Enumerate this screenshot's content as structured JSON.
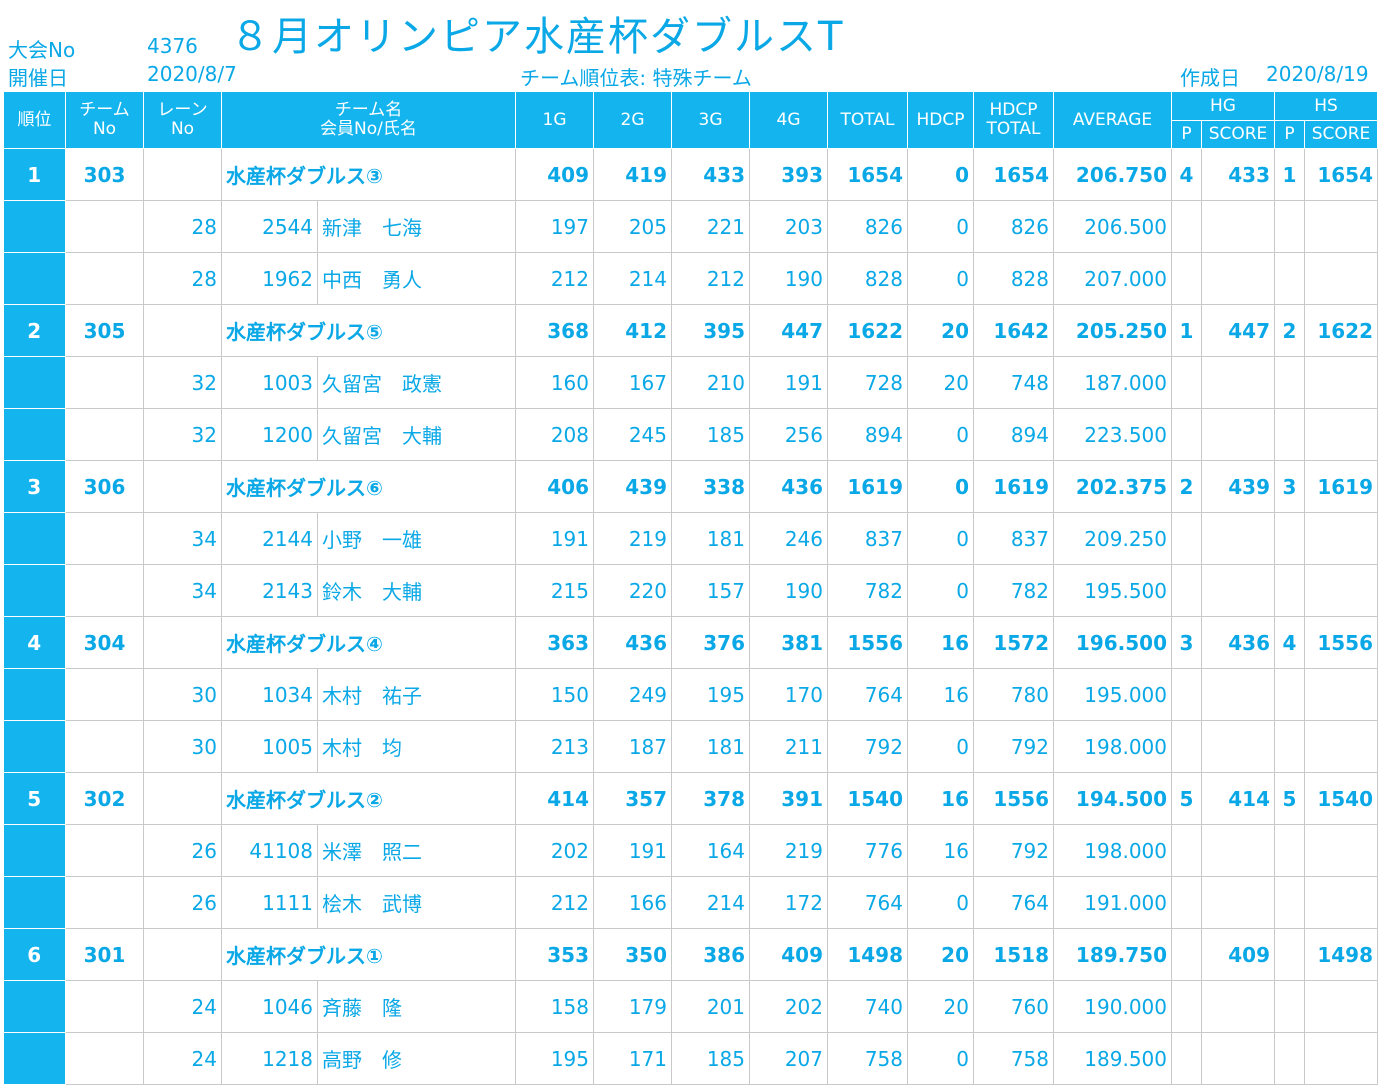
{
  "header": {
    "tournament_no_label": "大会No",
    "tournament_no": "4376",
    "date_label": "開催日",
    "date": "2020/8/7",
    "title": "８月オリンピア水産杯ダブルスT",
    "subtitle": "チーム順位表: 特殊チーム",
    "created_label": "作成日",
    "created_date": "2020/8/19"
  },
  "columns": {
    "rank": "順位",
    "team_no_1": "チーム",
    "team_no_2": "No",
    "lane_1": "レーン",
    "lane_2": "No",
    "team_name_1": "チーム名",
    "team_name_2": "会員No/氏名",
    "g1": "1G",
    "g2": "2G",
    "g3": "3G",
    "g4": "4G",
    "total": "TOTAL",
    "hdcp": "HDCP",
    "hdcp_total_1": "HDCP",
    "hdcp_total_2": "TOTAL",
    "average": "AVERAGE",
    "hg": "HG",
    "hs": "HS",
    "p": "P",
    "score": "SCORE"
  },
  "teams": [
    {
      "rank": "1",
      "team_no": "303",
      "name": "水産杯ダブルス③",
      "g1": "409",
      "g2": "419",
      "g3": "433",
      "g4": "393",
      "total": "1654",
      "hdcp": "0",
      "hdcp_total": "1654",
      "average": "206.750",
      "hg_p": "4",
      "hg_score": "433",
      "hs_p": "1",
      "hs_score": "1654",
      "members": [
        {
          "lane": "28",
          "member_no": "2544",
          "name": "新津　七海",
          "g1": "197",
          "g2": "205",
          "g3": "221",
          "g4": "203",
          "total": "826",
          "hdcp": "0",
          "hdcp_total": "826",
          "average": "206.500"
        },
        {
          "lane": "28",
          "member_no": "1962",
          "name": "中西　勇人",
          "g1": "212",
          "g2": "214",
          "g3": "212",
          "g4": "190",
          "total": "828",
          "hdcp": "0",
          "hdcp_total": "828",
          "average": "207.000"
        }
      ]
    },
    {
      "rank": "2",
      "team_no": "305",
      "name": "水産杯ダブルス⑤",
      "g1": "368",
      "g2": "412",
      "g3": "395",
      "g4": "447",
      "total": "1622",
      "hdcp": "20",
      "hdcp_total": "1642",
      "average": "205.250",
      "hg_p": "1",
      "hg_score": "447",
      "hs_p": "2",
      "hs_score": "1622",
      "members": [
        {
          "lane": "32",
          "member_no": "1003",
          "name": "久留宮　政憲",
          "g1": "160",
          "g2": "167",
          "g3": "210",
          "g4": "191",
          "total": "728",
          "hdcp": "20",
          "hdcp_total": "748",
          "average": "187.000"
        },
        {
          "lane": "32",
          "member_no": "1200",
          "name": "久留宮　大輔",
          "g1": "208",
          "g2": "245",
          "g3": "185",
          "g4": "256",
          "total": "894",
          "hdcp": "0",
          "hdcp_total": "894",
          "average": "223.500"
        }
      ]
    },
    {
      "rank": "3",
      "team_no": "306",
      "name": "水産杯ダブルス⑥",
      "g1": "406",
      "g2": "439",
      "g3": "338",
      "g4": "436",
      "total": "1619",
      "hdcp": "0",
      "hdcp_total": "1619",
      "average": "202.375",
      "hg_p": "2",
      "hg_score": "439",
      "hs_p": "3",
      "hs_score": "1619",
      "members": [
        {
          "lane": "34",
          "member_no": "2144",
          "name": "小野　一雄",
          "g1": "191",
          "g2": "219",
          "g3": "181",
          "g4": "246",
          "total": "837",
          "hdcp": "0",
          "hdcp_total": "837",
          "average": "209.250"
        },
        {
          "lane": "34",
          "member_no": "2143",
          "name": "鈴木　大輔",
          "g1": "215",
          "g2": "220",
          "g3": "157",
          "g4": "190",
          "total": "782",
          "hdcp": "0",
          "hdcp_total": "782",
          "average": "195.500"
        }
      ]
    },
    {
      "rank": "4",
      "team_no": "304",
      "name": "水産杯ダブルス④",
      "g1": "363",
      "g2": "436",
      "g3": "376",
      "g4": "381",
      "total": "1556",
      "hdcp": "16",
      "hdcp_total": "1572",
      "average": "196.500",
      "hg_p": "3",
      "hg_score": "436",
      "hs_p": "4",
      "hs_score": "1556",
      "members": [
        {
          "lane": "30",
          "member_no": "1034",
          "name": "木村　祐子",
          "g1": "150",
          "g2": "249",
          "g3": "195",
          "g4": "170",
          "total": "764",
          "hdcp": "16",
          "hdcp_total": "780",
          "average": "195.000"
        },
        {
          "lane": "30",
          "member_no": "1005",
          "name": "木村　均",
          "g1": "213",
          "g2": "187",
          "g3": "181",
          "g4": "211",
          "total": "792",
          "hdcp": "0",
          "hdcp_total": "792",
          "average": "198.000"
        }
      ]
    },
    {
      "rank": "5",
      "team_no": "302",
      "name": "水産杯ダブルス②",
      "g1": "414",
      "g2": "357",
      "g3": "378",
      "g4": "391",
      "total": "1540",
      "hdcp": "16",
      "hdcp_total": "1556",
      "average": "194.500",
      "hg_p": "5",
      "hg_score": "414",
      "hs_p": "5",
      "hs_score": "1540",
      "members": [
        {
          "lane": "26",
          "member_no": "41108",
          "name": "米澤　照二",
          "g1": "202",
          "g2": "191",
          "g3": "164",
          "g4": "219",
          "total": "776",
          "hdcp": "16",
          "hdcp_total": "792",
          "average": "198.000"
        },
        {
          "lane": "26",
          "member_no": "1111",
          "name": "桧木　武博",
          "g1": "212",
          "g2": "166",
          "g3": "214",
          "g4": "172",
          "total": "764",
          "hdcp": "0",
          "hdcp_total": "764",
          "average": "191.000"
        }
      ]
    },
    {
      "rank": "6",
      "team_no": "301",
      "name": "水産杯ダブルス①",
      "g1": "353",
      "g2": "350",
      "g3": "386",
      "g4": "409",
      "total": "1498",
      "hdcp": "20",
      "hdcp_total": "1518",
      "average": "189.750",
      "hg_p": "",
      "hg_score": "409",
      "hs_p": "",
      "hs_score": "1498",
      "members": [
        {
          "lane": "24",
          "member_no": "1046",
          "name": "斉藤　隆",
          "g1": "158",
          "g2": "179",
          "g3": "201",
          "g4": "202",
          "total": "740",
          "hdcp": "20",
          "hdcp_total": "760",
          "average": "190.000"
        },
        {
          "lane": "24",
          "member_no": "1218",
          "name": "高野　修",
          "g1": "195",
          "g2": "171",
          "g3": "185",
          "g4": "207",
          "total": "758",
          "hdcp": "0",
          "hdcp_total": "758",
          "average": "189.500"
        }
      ]
    }
  ]
}
